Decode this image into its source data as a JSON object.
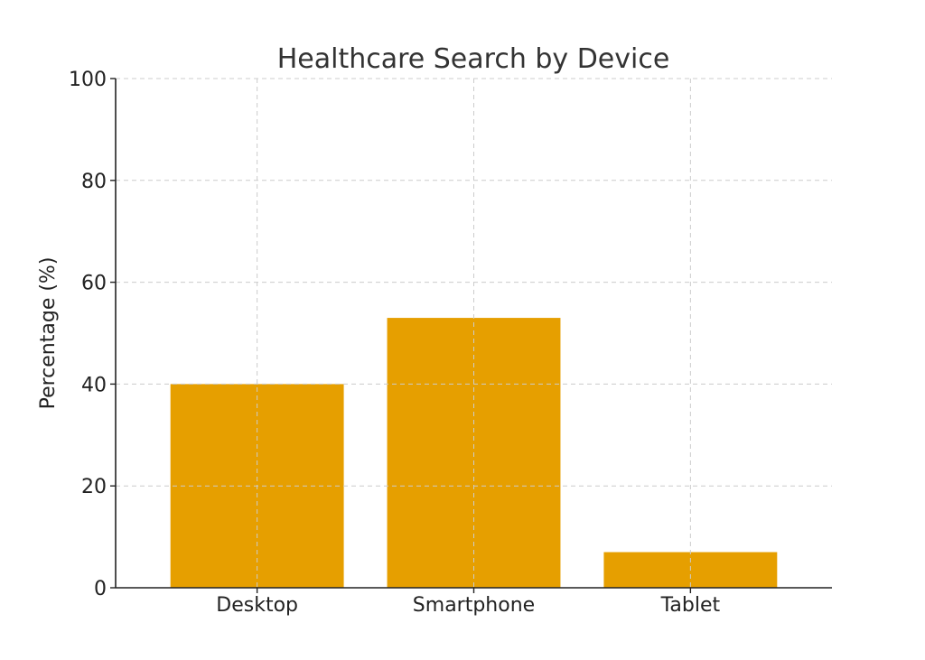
{
  "chart_data": {
    "type": "bar",
    "title": "Healthcare Search by Device",
    "xlabel": "",
    "ylabel": "Percentage (%)",
    "categories": [
      "Desktop",
      "Smartphone",
      "Tablet"
    ],
    "values": [
      40,
      53,
      7
    ],
    "ylim": [
      0,
      100
    ],
    "yticks": [
      0,
      20,
      40,
      60,
      80,
      100
    ],
    "grid": true,
    "bar_color": "#E69F00"
  }
}
